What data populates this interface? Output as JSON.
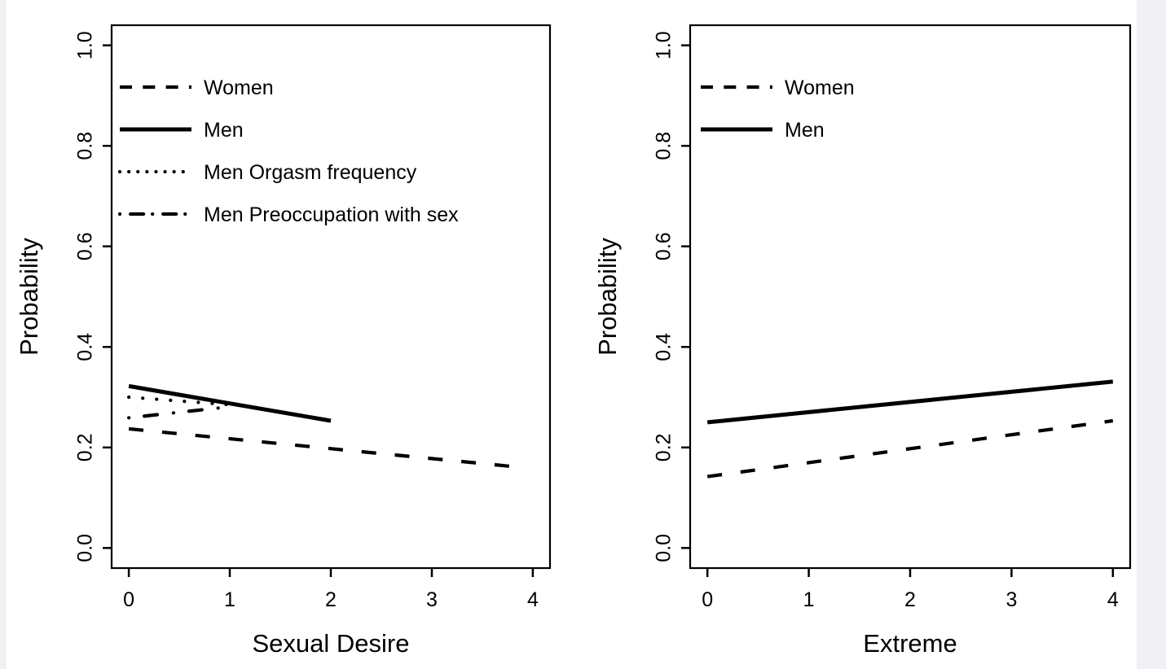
{
  "colors": {
    "line": "#000000",
    "text": "#000000",
    "plot_background": "#ffffff",
    "page_edge": "#f1f0f4"
  },
  "chart_data": [
    {
      "type": "line",
      "title": "",
      "xlabel": "Sexual Desire",
      "ylabel": "Probability",
      "xlim": [
        0,
        4
      ],
      "ylim": [
        0.0,
        1.0
      ],
      "grid": false,
      "legend_position": "top-left",
      "xtick_values": [
        0,
        1,
        2,
        3,
        4
      ],
      "xticks": [
        "0",
        "1",
        "2",
        "3",
        "4"
      ],
      "ytick_values": [
        0.0,
        0.2,
        0.4,
        0.6,
        0.8,
        1.0
      ],
      "yticks": [
        "0.0",
        "0.2",
        "0.4",
        "0.6",
        "0.8",
        "1.0"
      ],
      "series": [
        {
          "name": "Women",
          "style": "dashed",
          "x": [
            0,
            3.8
          ],
          "y": [
            0.237,
            0.162
          ]
        },
        {
          "name": "Men",
          "style": "solid",
          "x": [
            0,
            2.0
          ],
          "y": [
            0.322,
            0.253
          ]
        },
        {
          "name": "Men Orgasm frequency",
          "style": "dotted",
          "x": [
            0,
            1.0
          ],
          "y": [
            0.3,
            0.285
          ]
        },
        {
          "name": "Men Preoccupation with sex",
          "style": "dashdot",
          "x": [
            0,
            1.0
          ],
          "y": [
            0.259,
            0.281
          ]
        }
      ]
    },
    {
      "type": "line",
      "title": "",
      "xlabel": "Extreme",
      "ylabel": "Probability",
      "xlim": [
        0,
        4
      ],
      "ylim": [
        0.0,
        1.0
      ],
      "grid": false,
      "legend_position": "top-left",
      "xtick_values": [
        0,
        1,
        2,
        3,
        4
      ],
      "xticks": [
        "0",
        "1",
        "2",
        "3",
        "4"
      ],
      "ytick_values": [
        0.0,
        0.2,
        0.4,
        0.6,
        0.8,
        1.0
      ],
      "yticks": [
        "0.0",
        "0.2",
        "0.4",
        "0.6",
        "0.8",
        "1.0"
      ],
      "series": [
        {
          "name": "Women",
          "style": "dashed",
          "x": [
            0,
            4.0
          ],
          "y": [
            0.142,
            0.253
          ]
        },
        {
          "name": "Men",
          "style": "solid",
          "x": [
            0,
            4.0
          ],
          "y": [
            0.25,
            0.331
          ]
        }
      ]
    }
  ]
}
